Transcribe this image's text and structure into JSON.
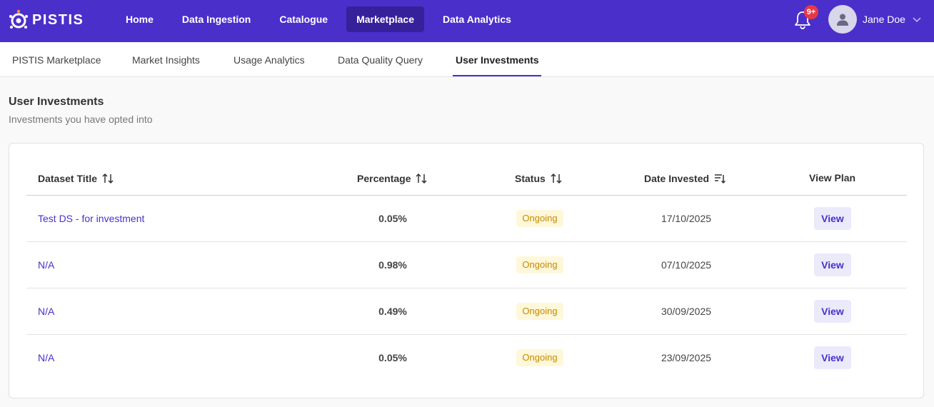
{
  "app": {
    "logo_text": "PISTIS"
  },
  "nav": {
    "items": [
      {
        "label": "Home"
      },
      {
        "label": "Data Ingestion"
      },
      {
        "label": "Catalogue"
      },
      {
        "label": "Marketplace"
      },
      {
        "label": "Data Analytics"
      }
    ],
    "active": "Marketplace"
  },
  "notifications": {
    "badge": "9+"
  },
  "user": {
    "name": "Jane Doe"
  },
  "subtabs": {
    "items": [
      {
        "label": "PISTIS Marketplace"
      },
      {
        "label": "Market Insights"
      },
      {
        "label": "Usage Analytics"
      },
      {
        "label": "Data Quality Query"
      },
      {
        "label": "User Investments"
      }
    ],
    "active": "User Investments"
  },
  "page": {
    "title": "User Investments",
    "subtitle": "Investments you have opted into"
  },
  "table": {
    "columns": {
      "title": "Dataset Title",
      "percentage": "Percentage",
      "status": "Status",
      "date": "Date Invested",
      "plan": "View Plan"
    },
    "rows": [
      {
        "title": "Test DS - for investment",
        "percentage": "0.05%",
        "status": "Ongoing",
        "date": "17/10/2025",
        "action": "View"
      },
      {
        "title": "N/A",
        "percentage": "0.98%",
        "status": "Ongoing",
        "date": "07/10/2025",
        "action": "View"
      },
      {
        "title": "N/A",
        "percentage": "0.49%",
        "status": "Ongoing",
        "date": "30/09/2025",
        "action": "View"
      },
      {
        "title": "N/A",
        "percentage": "0.05%",
        "status": "Ongoing",
        "date": "23/09/2025",
        "action": "View"
      }
    ]
  },
  "colors": {
    "brand": "#4b2fcb",
    "nav_active": "#37219b",
    "status_bg": "#fff7d9",
    "status_text": "#c58a00",
    "badge": "#e63946"
  }
}
